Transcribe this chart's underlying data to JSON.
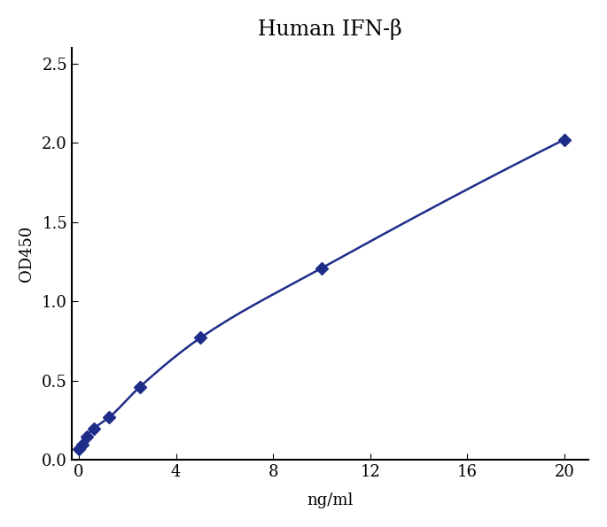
{
  "title": "Human IFN-β",
  "xlabel": "ng/ml",
  "ylabel": "OD450",
  "data_x": [
    0.0,
    0.156,
    0.313,
    0.625,
    1.25,
    2.5,
    5.0,
    10.0,
    20.0
  ],
  "data_y": [
    0.07,
    0.1,
    0.15,
    0.2,
    0.27,
    0.46,
    0.77,
    1.21,
    2.02
  ],
  "xlim": [
    -0.3,
    21
  ],
  "ylim": [
    0,
    2.6
  ],
  "xticks": [
    0,
    4,
    8,
    12,
    16,
    20
  ],
  "yticks": [
    0,
    0.5,
    1.0,
    1.5,
    2.0,
    2.5
  ],
  "color": "#1f2d8a",
  "marker": "D",
  "markersize": 7,
  "linewidth": 1.8,
  "title_fontsize": 17,
  "label_fontsize": 13,
  "tick_fontsize": 13
}
